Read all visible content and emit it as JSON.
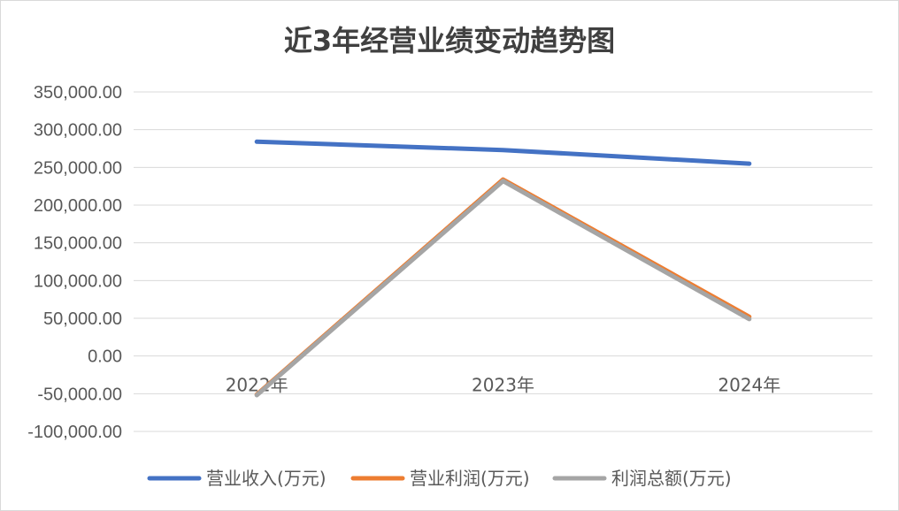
{
  "chart_data": {
    "type": "line",
    "title": "近3年经营业绩变动趋势图",
    "categories": [
      "2022年",
      "2023年",
      "2024年"
    ],
    "series": [
      {
        "name": "营业收入(万元)",
        "color": "#4472C4",
        "values": [
          284000,
          273000,
          255000
        ]
      },
      {
        "name": "营业利润(万元)",
        "color": "#ED7D31",
        "values": [
          -51000,
          234000,
          52000
        ]
      },
      {
        "name": "利润总额(万元)",
        "color": "#A5A5A5",
        "values": [
          -52000,
          232000,
          49000
        ]
      }
    ],
    "yticks": [
      "350,000.00",
      "300,000.00",
      "250,000.00",
      "200,000.00",
      "150,000.00",
      "100,000.00",
      "50,000.00",
      "0.00",
      "-50,000.00",
      "-100,000.00"
    ],
    "ylim": [
      -100000,
      350000
    ],
    "grid": true,
    "legend_position": "bottom"
  }
}
